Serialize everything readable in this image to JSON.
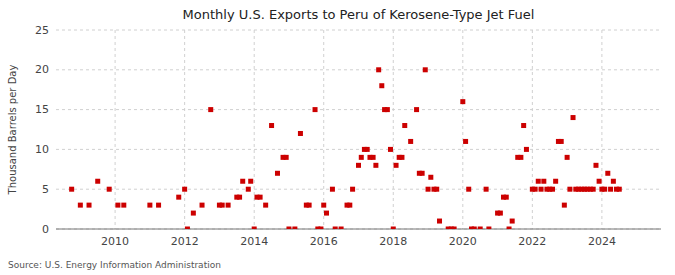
{
  "chart_data": {
    "type": "scatter",
    "title": "Monthly U.S. Exports to Peru of Kerosene-Type Jet Fuel",
    "ylabel": "Thousand Barrels per Day",
    "source": "Source: U.S. Energy Information Administration",
    "color": "#cc0000",
    "marker": "square",
    "grid": true,
    "xlim": [
      2008.3,
      2025.7
    ],
    "xticks": [
      2010,
      2012,
      2014,
      2016,
      2018,
      2020,
      2022,
      2024
    ],
    "ylim": [
      0,
      25
    ],
    "yticks": [
      0,
      5,
      10,
      15,
      20,
      25
    ],
    "x": [
      2008.75,
      2009.0,
      2009.25,
      2009.5,
      2009.83,
      2010.08,
      2010.25,
      2011.0,
      2011.25,
      2011.83,
      2012.0,
      2012.08,
      2012.25,
      2012.5,
      2012.75,
      2013.0,
      2013.08,
      2013.25,
      2013.5,
      2013.58,
      2013.67,
      2013.83,
      2013.9,
      2014.0,
      2014.08,
      2014.17,
      2014.33,
      2014.5,
      2014.67,
      2014.83,
      2014.92,
      2015.0,
      2015.17,
      2015.33,
      2015.5,
      2015.58,
      2015.75,
      2015.83,
      2015.92,
      2016.0,
      2016.08,
      2016.25,
      2016.33,
      2016.5,
      2016.67,
      2016.75,
      2016.83,
      2017.0,
      2017.08,
      2017.17,
      2017.25,
      2017.33,
      2017.42,
      2017.5,
      2017.58,
      2017.67,
      2017.75,
      2017.83,
      2017.92,
      2018.0,
      2018.08,
      2018.17,
      2018.25,
      2018.33,
      2018.5,
      2018.67,
      2018.75,
      2018.83,
      2018.92,
      2019.0,
      2019.08,
      2019.17,
      2019.25,
      2019.33,
      2019.58,
      2019.67,
      2019.75,
      2020.0,
      2020.08,
      2020.17,
      2020.25,
      2020.33,
      2020.5,
      2020.67,
      2020.75,
      2021.0,
      2021.08,
      2021.17,
      2021.25,
      2021.33,
      2021.42,
      2021.58,
      2021.67,
      2021.75,
      2021.83,
      2022.0,
      2022.08,
      2022.17,
      2022.25,
      2022.33,
      2022.42,
      2022.5,
      2022.58,
      2022.67,
      2022.75,
      2022.83,
      2022.92,
      2023.0,
      2023.08,
      2023.17,
      2023.25,
      2023.33,
      2023.42,
      2023.5,
      2023.58,
      2023.67,
      2023.75,
      2023.83,
      2023.92,
      2024.0,
      2024.08,
      2024.17,
      2024.25,
      2024.33,
      2024.42,
      2024.5
    ],
    "values": [
      5.0,
      3.0,
      3.0,
      6.0,
      5.0,
      3.0,
      3.0,
      3.0,
      3.0,
      4.0,
      5.0,
      0.0,
      2.0,
      3.0,
      15.0,
      3.0,
      3.0,
      3.0,
      4.0,
      4.0,
      6.0,
      5.0,
      6.0,
      0.0,
      4.0,
      4.0,
      3.0,
      13.0,
      7.0,
      9.0,
      9.0,
      0.0,
      0.0,
      12.0,
      3.0,
      3.0,
      15.0,
      0.0,
      0.0,
      3.0,
      2.0,
      5.0,
      0.0,
      0.0,
      3.0,
      3.0,
      5.0,
      8.0,
      9.0,
      10.0,
      10.0,
      9.0,
      9.0,
      8.0,
      20.0,
      18.0,
      15.0,
      15.0,
      10.0,
      0.0,
      8.0,
      9.0,
      9.0,
      13.0,
      11.0,
      15.0,
      7.0,
      7.0,
      20.0,
      5.0,
      6.5,
      5.0,
      5.0,
      1.0,
      0.0,
      0.0,
      0.0,
      16.0,
      11.0,
      5.0,
      0.0,
      0.0,
      0.0,
      5.0,
      0.0,
      2.0,
      2.0,
      4.0,
      4.0,
      0.0,
      1.0,
      9.0,
      9.0,
      13.0,
      10.0,
      5.0,
      5.0,
      6.0,
      5.0,
      6.0,
      5.0,
      5.0,
      5.0,
      6.0,
      11.0,
      11.0,
      3.0,
      9.0,
      5.0,
      14.0,
      5.0,
      5.0,
      5.0,
      5.0,
      5.0,
      5.0,
      5.0,
      8.0,
      6.0,
      5.0,
      5.0,
      7.0,
      5.0,
      6.0,
      5.0,
      5.0
    ]
  }
}
